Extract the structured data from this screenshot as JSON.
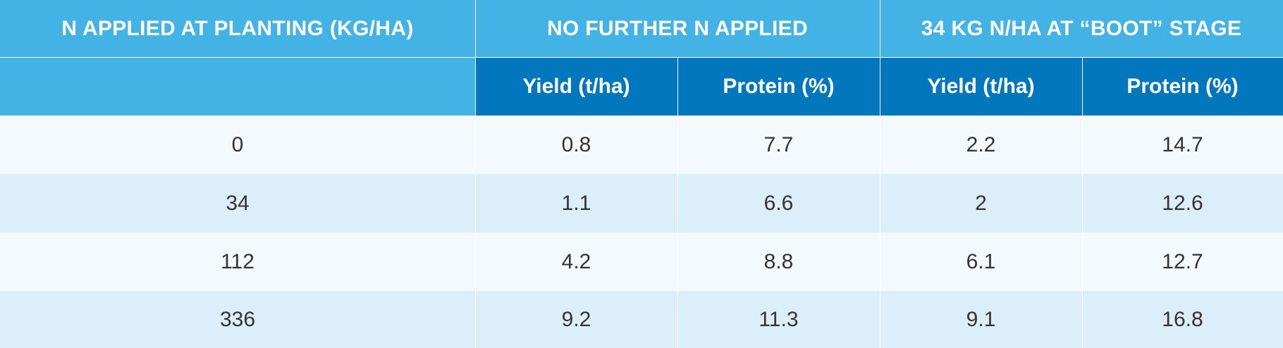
{
  "chart_data": {
    "type": "table",
    "group_headers": [
      "N APPLIED AT PLANTING (KG/HA)",
      "NO FURTHER N APPLIED",
      "34 KG N/HA AT “BOOT” STAGE"
    ],
    "sub_headers": [
      "",
      "Yield (t/ha)",
      "Protein (%)",
      "Yield (t/ha)",
      "Protein (%)"
    ],
    "rows": [
      [
        "0",
        "0.8",
        "7.7",
        "2.2",
        "14.7"
      ],
      [
        "34",
        "1.1",
        "6.6",
        "2",
        "12.6"
      ],
      [
        "112",
        "4.2",
        "8.8",
        "6.1",
        "12.7"
      ],
      [
        "336",
        "9.2",
        "11.3",
        "9.1",
        "16.8"
      ]
    ]
  },
  "colors": {
    "header_light_blue": "#42b3e4",
    "header_dark_blue": "#0277bd",
    "row_light": "#f4f9fd",
    "row_dark": "#dbeef9",
    "body_text": "#333333"
  }
}
